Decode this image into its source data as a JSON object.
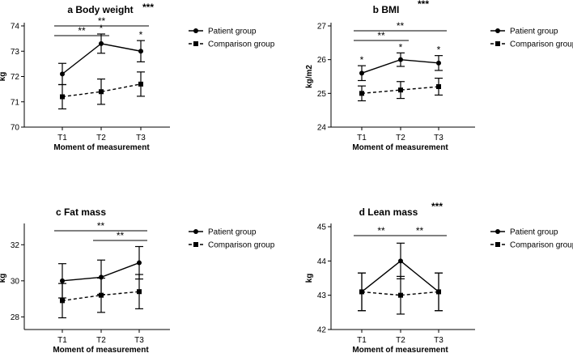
{
  "chart_data": [
    {
      "id": "a",
      "type": "line",
      "title": "a  Body weight",
      "title_stars": "***",
      "xlabel": "Moment of measurement",
      "ylabel": "kg",
      "categories": [
        "T1",
        "T2",
        "T3"
      ],
      "ylim": [
        70,
        74
      ],
      "yticks": [
        70,
        71,
        72,
        73,
        74
      ],
      "series": [
        {
          "name": "Patient group",
          "values": [
            72.1,
            73.3,
            73.0
          ],
          "err": [
            0.42,
            0.38,
            0.42
          ]
        },
        {
          "name": "Comparison group",
          "values": [
            71.2,
            71.4,
            71.7
          ],
          "err": [
            0.48,
            0.5,
            0.48
          ]
        }
      ],
      "point_stars": [
        {
          "series": 0,
          "index": 1,
          "text": "*"
        },
        {
          "series": 0,
          "index": 2,
          "text": "*"
        }
      ],
      "brackets": [
        {
          "from": 0,
          "to": 2,
          "text": "**",
          "level": 0
        },
        {
          "from": 0,
          "to": 1,
          "text": "**",
          "level": 1
        }
      ]
    },
    {
      "id": "b",
      "type": "line",
      "title": "b  BMI",
      "title_stars": "***",
      "xlabel": "Moment of measurement",
      "ylabel": "kg/m2",
      "categories": [
        "T1",
        "T2",
        "T3"
      ],
      "ylim": [
        24,
        27
      ],
      "yticks": [
        24,
        25,
        26,
        27
      ],
      "series": [
        {
          "name": "Patient group",
          "values": [
            25.6,
            26.0,
            25.9
          ],
          "err": [
            0.22,
            0.2,
            0.22
          ]
        },
        {
          "name": "Comparison group",
          "values": [
            25.0,
            25.1,
            25.2
          ],
          "err": [
            0.22,
            0.25,
            0.25
          ]
        }
      ],
      "point_stars": [
        {
          "series": 0,
          "index": 0,
          "text": "*"
        },
        {
          "series": 0,
          "index": 1,
          "text": "*"
        },
        {
          "series": 0,
          "index": 2,
          "text": "*"
        }
      ],
      "brackets": [
        {
          "from": 0,
          "to": 2,
          "text": "**",
          "level": 0
        },
        {
          "from": 0,
          "to": 1,
          "text": "**",
          "level": 1
        }
      ]
    },
    {
      "id": "c",
      "type": "line",
      "title": "c  Fat mass",
      "title_stars": "",
      "xlabel": "Moment of measurement",
      "ylabel": "kg",
      "categories": [
        "T1",
        "T2",
        "T3"
      ],
      "ylim": [
        27.3,
        33
      ],
      "yticks": [
        28,
        30,
        32
      ],
      "series": [
        {
          "name": "Patient group",
          "values": [
            30.0,
            30.2,
            31.0
          ],
          "err": [
            0.95,
            0.95,
            0.9
          ]
        },
        {
          "name": "Comparison group",
          "values": [
            28.9,
            29.2,
            29.4
          ],
          "err": [
            0.95,
            0.95,
            0.95
          ]
        }
      ],
      "point_stars": [],
      "brackets": [
        {
          "from": 0,
          "to": 2,
          "text": "**",
          "level": 0
        },
        {
          "from": 1,
          "to": 2,
          "text": "**",
          "level": 1
        }
      ]
    },
    {
      "id": "d",
      "type": "line",
      "title": "d  Lean mass",
      "title_stars": "***",
      "xlabel": "Moment of measurement",
      "ylabel": "kg",
      "categories": [
        "T1",
        "T2",
        "T3"
      ],
      "ylim": [
        42,
        45
      ],
      "yticks": [
        42,
        43,
        44,
        45
      ],
      "series": [
        {
          "name": "Patient group",
          "values": [
            43.1,
            44.0,
            43.1
          ],
          "err": [
            0.55,
            0.52,
            0.55
          ]
        },
        {
          "name": "Comparison group",
          "values": [
            43.1,
            43.0,
            43.1
          ],
          "err": [
            0.55,
            0.55,
            0.55
          ]
        }
      ],
      "point_stars": [],
      "brackets": [
        {
          "from": 0,
          "to": 1,
          "text": "**",
          "level": 0
        },
        {
          "from": 1,
          "to": 2,
          "text": "**",
          "level": 0
        }
      ]
    }
  ]
}
